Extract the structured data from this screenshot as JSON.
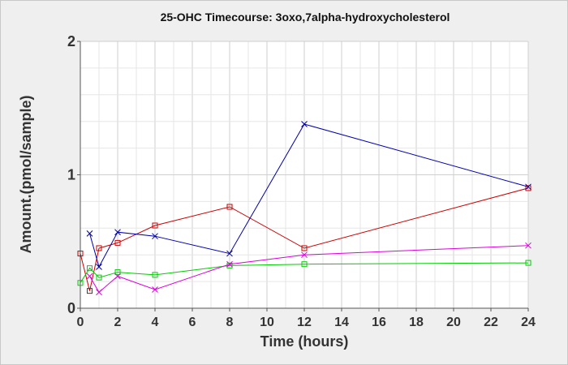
{
  "chart_data": {
    "type": "line",
    "title": "25-OHC Timecourse: 3oxo,7alpha-hydroxycholesterol",
    "xlabel": "Time (hours)",
    "ylabel": "Amount.(pmol/sample)",
    "xlim": [
      0,
      24
    ],
    "ylim": [
      0,
      2
    ],
    "xticks": [
      "0",
      "2",
      "4",
      "6",
      "8",
      "10",
      "12",
      "14",
      "16",
      "18",
      "20",
      "22",
      "24"
    ],
    "yticks": [
      "0",
      "1",
      "2"
    ],
    "grid": true,
    "legend": "none",
    "series": [
      {
        "color": "#cc0000",
        "marker": "square",
        "points": [
          [
            0,
            0.41
          ],
          [
            0.5,
            0.13
          ],
          [
            1,
            0.45
          ],
          [
            2,
            0.49
          ],
          [
            4,
            0.62
          ],
          [
            8,
            0.76
          ],
          [
            12,
            0.45
          ],
          [
            24,
            0.9
          ]
        ]
      },
      {
        "color": "#0000aa",
        "marker": "x",
        "points": [
          [
            0.5,
            0.56
          ],
          [
            1,
            0.31
          ],
          [
            2,
            0.57
          ],
          [
            4,
            0.54
          ],
          [
            8,
            0.41
          ],
          [
            12,
            1.38
          ],
          [
            24,
            0.91
          ]
        ]
      },
      {
        "color": "#00cc00",
        "marker": "square",
        "points": [
          [
            0,
            0.19
          ],
          [
            0.5,
            0.3
          ],
          [
            1,
            0.23
          ],
          [
            2,
            0.27
          ],
          [
            4,
            0.25
          ],
          [
            8,
            0.32
          ],
          [
            12,
            0.33
          ],
          [
            24,
            0.34
          ]
        ]
      },
      {
        "color": "#dd00dd",
        "marker": "x",
        "points": [
          [
            0.5,
            0.24
          ],
          [
            1,
            0.12
          ],
          [
            2,
            0.24
          ],
          [
            4,
            0.14
          ],
          [
            8,
            0.33
          ],
          [
            12,
            0.4
          ],
          [
            24,
            0.47
          ]
        ]
      }
    ]
  }
}
